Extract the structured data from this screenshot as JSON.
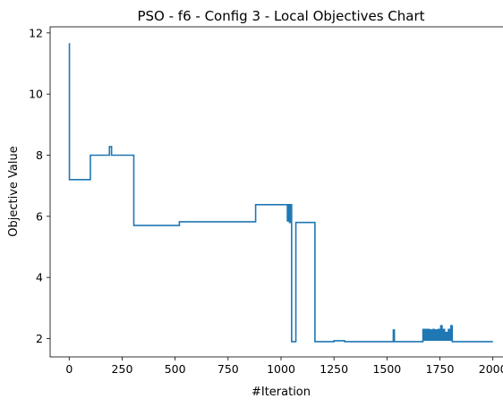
{
  "chart_data": {
    "type": "line",
    "title": "PSO - f6 - Config 3 - Local Objectives Chart",
    "xlabel": "#Iteration",
    "ylabel": "Objective Value",
    "xlim": [
      -90,
      2090
    ],
    "ylim": [
      1.4,
      12.2
    ],
    "xticks": [
      0,
      250,
      500,
      750,
      1000,
      1250,
      1500,
      1750,
      2000
    ],
    "yticks": [
      2,
      4,
      6,
      8,
      10,
      12
    ],
    "grid": false,
    "line_color": "#1f77b4",
    "series": [
      {
        "x": [
          0,
          1,
          1,
          100,
          100,
          190,
          190,
          200,
          200,
          305,
          305,
          520,
          520,
          880,
          880,
          1030,
          1030,
          1035,
          1035,
          1040,
          1040,
          1043,
          1043,
          1050,
          1050,
          1070,
          1070,
          1160,
          1160,
          1250,
          1250,
          1300,
          1300,
          1530,
          1530,
          1535,
          1535,
          1670,
          1670,
          1676,
          1676,
          1682,
          1682,
          1688,
          1688,
          1694,
          1694,
          1700,
          1700,
          1706,
          1706,
          1712,
          1712,
          1718,
          1718,
          1724,
          1724,
          1730,
          1730,
          1736,
          1736,
          1742,
          1742,
          1748,
          1748,
          1754,
          1754,
          1760,
          1760,
          1766,
          1766,
          1772,
          1772,
          1778,
          1778,
          1784,
          1784,
          1790,
          1790,
          1796,
          1796,
          1802,
          1802,
          1808,
          1808,
          2000
        ],
        "y": [
          11.65,
          11.65,
          7.2,
          7.2,
          8.0,
          8.0,
          8.28,
          8.28,
          8.0,
          8.0,
          5.7,
          5.7,
          5.82,
          5.82,
          6.38,
          6.38,
          5.85,
          5.85,
          6.38,
          6.38,
          5.8,
          5.8,
          6.38,
          6.38,
          1.9,
          1.9,
          5.8,
          5.8,
          1.9,
          1.9,
          1.93,
          1.93,
          1.9,
          1.9,
          2.28,
          2.28,
          1.9,
          1.9,
          2.3,
          2.3,
          1.95,
          1.95,
          2.3,
          2.3,
          1.95,
          1.95,
          2.3,
          2.3,
          1.95,
          1.95,
          2.28,
          2.28,
          1.95,
          1.95,
          2.3,
          2.3,
          1.95,
          1.95,
          2.28,
          2.28,
          1.95,
          1.95,
          2.3,
          2.3,
          1.95,
          1.95,
          2.42,
          2.42,
          1.95,
          1.95,
          2.3,
          2.3,
          1.95,
          1.95,
          2.2,
          2.2,
          1.95,
          1.95,
          2.3,
          2.3,
          1.95,
          1.95,
          2.42,
          2.42,
          1.9,
          1.9
        ]
      }
    ]
  }
}
